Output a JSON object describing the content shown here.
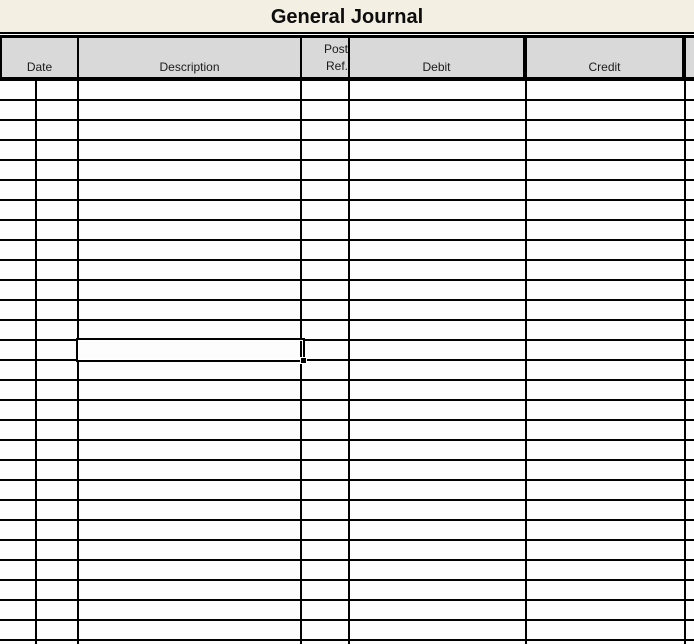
{
  "title": "General Journal",
  "header": {
    "date": "Date",
    "description": "Description",
    "post_ref_line1": "Post",
    "post_ref_line2": "Ref.",
    "debit": "Debit",
    "credit": "Credit"
  },
  "table": {
    "columns": [
      "Date",
      "Description",
      "Post Ref.",
      "Debit",
      "Credit"
    ],
    "row_count": 29,
    "rows_empty": true
  },
  "selection": {
    "row": 14,
    "column": "Description",
    "value": ""
  },
  "colors": {
    "title_band_bg": "#f3efe2",
    "header_bg": "#d9d9d9",
    "cell_bg": "#fdfdfd",
    "grid_line": "#000000",
    "title_text": "#0d0d0d"
  }
}
